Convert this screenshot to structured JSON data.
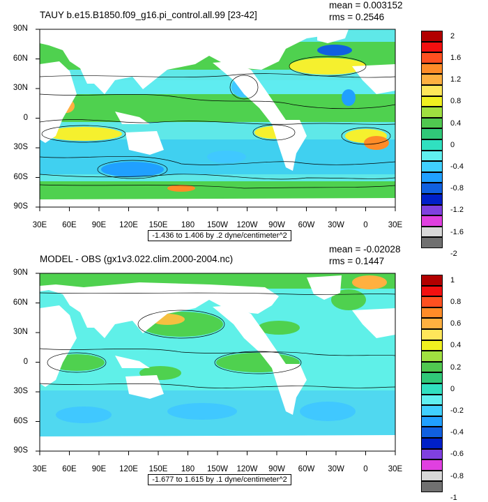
{
  "panels": [
    {
      "title": "TAUY b.e15.B1850.f09_g16.pi_control.all.99 [23-42]",
      "mean_text": "mean = 0.003152",
      "rms_text": "rms = 0.2546",
      "range_text": "-1.436 to 1.406 by .2 dyne/centimeter^2",
      "lat_labels": [
        "90N",
        "60N",
        "30N",
        "0",
        "30S",
        "60S",
        "90S"
      ],
      "lon_labels": [
        "30E",
        "60E",
        "90E",
        "120E",
        "150E",
        "180",
        "150W",
        "120W",
        "90W",
        "60W",
        "30W",
        "0",
        "30E"
      ],
      "colorbar_labels": [
        "2",
        "1.6",
        "1.2",
        "0.8",
        "0.4",
        "0",
        "-0.4",
        "-0.8",
        "-1.2",
        "-1.6",
        "-2"
      ],
      "colorbar_colors": [
        "#b20000",
        "#f21010",
        "#ff5020",
        "#ff8c28",
        "#ffb040",
        "#ffe65a",
        "#f0f020",
        "#a0e040",
        "#50c850",
        "#30c878",
        "#30e0c0",
        "#60f0f0",
        "#40d0ff",
        "#20a0ff",
        "#1060e0",
        "#0020c8",
        "#8040e0",
        "#e040e0",
        "#d8d8d8",
        "#707070"
      ]
    },
    {
      "title": "MODEL - OBS (gx1v3.022.clim.2000-2004.nc)",
      "mean_text": "mean = -0.02028",
      "rms_text": "rms = 0.1447",
      "range_text": "-1.677 to 1.615 by .1 dyne/centimeter^2",
      "lat_labels": [
        "90N",
        "60N",
        "30N",
        "0",
        "30S",
        "60S",
        "90S"
      ],
      "lon_labels": [
        "30E",
        "60E",
        "90E",
        "120E",
        "150E",
        "180",
        "150W",
        "120W",
        "90W",
        "60W",
        "30W",
        "0",
        "30E"
      ],
      "colorbar_labels": [
        "1",
        "0.8",
        "0.6",
        "0.4",
        "0.2",
        "0",
        "-0.2",
        "-0.4",
        "-0.6",
        "-0.8",
        "-1"
      ],
      "colorbar_colors": [
        "#b20000",
        "#f21010",
        "#ff5020",
        "#ff8c28",
        "#ffb040",
        "#ffe65a",
        "#f0f020",
        "#a0e040",
        "#50c850",
        "#30c878",
        "#30e0c0",
        "#60f0f0",
        "#40d0ff",
        "#20a0ff",
        "#1060e0",
        "#0020c8",
        "#8040e0",
        "#e040e0",
        "#d8d8d8",
        "#707070"
      ]
    }
  ],
  "colors": {
    "ocean_base": "#60f0e0",
    "ocean_light": "#5fecf0",
    "green": "#4fd14f",
    "yellow": "#f5f02e",
    "orange": "#ffb040",
    "blue": "#40c8ff",
    "dark_blue": "#1060e0",
    "land": "#ffffff"
  }
}
